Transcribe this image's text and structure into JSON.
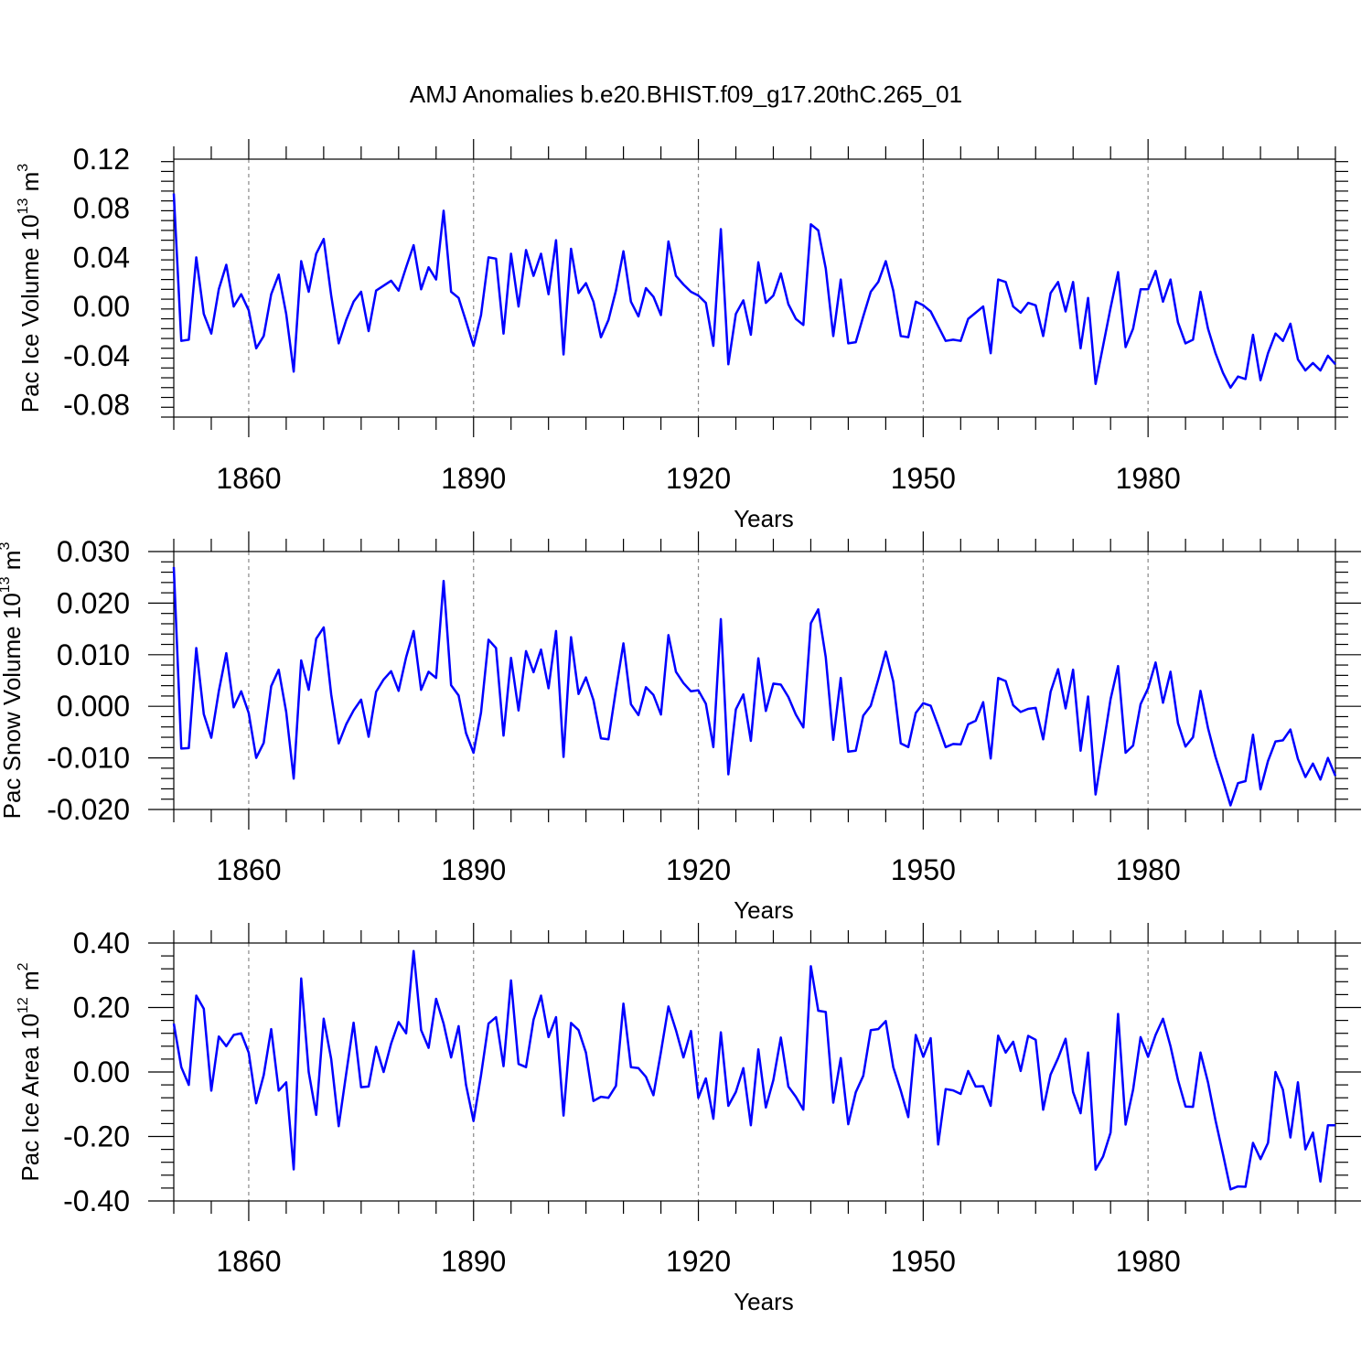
{
  "chart_data": {
    "title": "AMJ Anomalies b.e20.BHIST.f09_g17.20thC.265_01",
    "type": "line",
    "color": "#0000ff",
    "panels": [
      {
        "id": "ice-volume",
        "ylabel": {
          "main": "Pac Ice Volume 10",
          "exp": "13",
          "unit": " m",
          "unit_exp": "3"
        },
        "xlabel": "Years",
        "ylim": [
          -0.09,
          0.12
        ],
        "yticks": [
          -0.08,
          -0.04,
          0.0,
          0.04,
          0.08,
          0.12
        ],
        "ytick_labels": [
          "-0.08",
          "-0.04",
          "0.00",
          "0.04",
          "0.08",
          "0.12"
        ],
        "ydecimals": 2,
        "xlim": [
          1850,
          2005
        ],
        "xticks": [
          1860,
          1890,
          1920,
          1950,
          1980
        ],
        "x_start": 1850,
        "values": [
          0.092,
          -0.028,
          -0.027,
          0.04,
          -0.006,
          -0.022,
          0.014,
          0.034,
          0.0,
          0.01,
          -0.003,
          -0.034,
          -0.024,
          0.01,
          0.026,
          -0.006,
          -0.053,
          0.037,
          0.012,
          0.043,
          0.055,
          0.009,
          -0.03,
          -0.011,
          0.004,
          0.012,
          -0.02,
          0.013,
          0.017,
          0.021,
          0.013,
          0.032,
          0.05,
          0.014,
          0.032,
          0.022,
          0.078,
          0.012,
          0.007,
          -0.012,
          -0.032,
          -0.007,
          0.04,
          0.039,
          -0.022,
          0.043,
          0.0,
          0.046,
          0.025,
          0.043,
          0.01,
          0.054,
          -0.039,
          0.047,
          0.011,
          0.019,
          0.004,
          -0.025,
          -0.011,
          0.013,
          0.045,
          0.004,
          -0.008,
          0.015,
          0.008,
          -0.007,
          0.053,
          0.025,
          0.018,
          0.012,
          0.009,
          0.003,
          -0.032,
          0.063,
          -0.047,
          -0.006,
          0.005,
          -0.023,
          0.036,
          0.003,
          0.009,
          0.027,
          0.002,
          -0.01,
          -0.015,
          0.067,
          0.062,
          0.031,
          -0.024,
          0.022,
          -0.03,
          -0.029,
          -0.008,
          0.012,
          0.02,
          0.037,
          0.013,
          -0.024,
          -0.025,
          0.004,
          0.001,
          -0.004,
          -0.016,
          -0.028,
          -0.027,
          -0.028,
          -0.01,
          -0.005,
          0.0,
          -0.038,
          0.022,
          0.02,
          0.0,
          -0.005,
          0.003,
          0.001,
          -0.024,
          0.011,
          0.02,
          -0.004,
          0.02,
          -0.034,
          0.007,
          -0.063,
          -0.032,
          -0.001,
          0.028,
          -0.033,
          -0.018,
          0.014,
          0.014,
          0.029,
          0.004,
          0.022,
          -0.013,
          -0.03,
          -0.027,
          0.012,
          -0.018,
          -0.038,
          -0.054,
          -0.066,
          -0.057,
          -0.059,
          -0.023,
          -0.06,
          -0.038,
          -0.022,
          -0.028,
          -0.014,
          -0.043,
          -0.052,
          -0.046,
          -0.052,
          -0.04,
          -0.047
        ]
      },
      {
        "id": "snow-volume",
        "ylabel": {
          "main": "Pac Snow Volume 10",
          "exp": "13",
          "unit": " m",
          "unit_exp": "3"
        },
        "xlabel": "Years",
        "ylim": [
          -0.02,
          0.03
        ],
        "yticks": [
          -0.02,
          -0.01,
          0.0,
          0.01,
          0.02,
          0.03
        ],
        "ytick_labels": [
          "-0.020",
          "-0.010",
          "0.000",
          "0.010",
          "0.020",
          "0.030"
        ],
        "ydecimals": 3,
        "xlim": [
          1850,
          2005
        ],
        "xticks": [
          1860,
          1890,
          1920,
          1950,
          1980
        ],
        "x_start": 1850,
        "values": [
          0.027,
          -0.0082,
          -0.0081,
          0.0113,
          -0.0015,
          -0.0061,
          0.0029,
          0.0103,
          -0.0002,
          0.0029,
          -0.0013,
          -0.01,
          -0.0071,
          0.0039,
          0.0071,
          -0.0011,
          -0.014,
          0.0089,
          0.0032,
          0.0131,
          0.0153,
          0.0023,
          -0.0072,
          -0.0035,
          -0.0008,
          0.0013,
          -0.0059,
          0.0028,
          0.0052,
          0.0068,
          0.003,
          0.0095,
          0.0146,
          0.0032,
          0.0067,
          0.0055,
          0.0243,
          0.0041,
          0.0021,
          -0.0052,
          -0.009,
          -0.0012,
          0.0129,
          0.0113,
          -0.0057,
          0.0094,
          -0.0008,
          0.0107,
          0.0066,
          0.011,
          0.0035,
          0.0146,
          -0.0098,
          0.0134,
          0.0024,
          0.0056,
          0.0012,
          -0.0062,
          -0.0064,
          0.0032,
          0.0122,
          0.0004,
          -0.0017,
          0.0037,
          0.0022,
          -0.0016,
          0.0138,
          0.0067,
          0.0045,
          0.0029,
          0.0031,
          0.0005,
          -0.0079,
          0.0169,
          -0.0132,
          -0.0006,
          0.0023,
          -0.0067,
          0.0093,
          -0.0009,
          0.0044,
          0.0042,
          0.0018,
          -0.0016,
          -0.0041,
          0.0161,
          0.0188,
          0.0095,
          -0.0065,
          0.0055,
          -0.0088,
          -0.0086,
          -0.0018,
          0.0001,
          0.0052,
          0.0106,
          0.0048,
          -0.0072,
          -0.0079,
          -0.0013,
          0.0006,
          0.0001,
          -0.0038,
          -0.0079,
          -0.0073,
          -0.0074,
          -0.0035,
          -0.0028,
          0.0008,
          -0.0101,
          0.0055,
          0.0049,
          0.0002,
          -0.0011,
          -0.0005,
          -0.0003,
          -0.0064,
          0.0028,
          0.0072,
          -0.0004,
          0.0071,
          -0.0086,
          0.0019,
          -0.0171,
          -0.0079,
          0.0014,
          0.0078,
          -0.009,
          -0.0076,
          0.0004,
          0.0035,
          0.0085,
          0.0007,
          0.0067,
          -0.0033,
          -0.0078,
          -0.006,
          0.003,
          -0.0042,
          -0.0098,
          -0.0144,
          -0.0192,
          -0.0149,
          -0.0145,
          -0.0055,
          -0.0161,
          -0.0106,
          -0.0068,
          -0.0066,
          -0.0045,
          -0.0102,
          -0.0137,
          -0.0111,
          -0.0142,
          -0.01,
          -0.0135
        ]
      },
      {
        "id": "ice-area",
        "ylabel": {
          "main": "Pac Ice Area 10",
          "exp": "12",
          "unit": " m",
          "unit_exp": "2"
        },
        "xlabel": "Years",
        "ylim": [
          -0.4,
          0.4
        ],
        "yticks": [
          -0.4,
          -0.2,
          0.0,
          0.2,
          0.4
        ],
        "ytick_labels": [
          "-0.40",
          "-0.20",
          "0.00",
          "0.20",
          "0.40"
        ],
        "ydecimals": 2,
        "xlim": [
          1850,
          2005
        ],
        "xticks": [
          1860,
          1890,
          1920,
          1950,
          1980
        ],
        "x_start": 1850,
        "values": [
          0.15,
          0.015,
          -0.04,
          0.237,
          0.196,
          -0.058,
          0.11,
          0.08,
          0.115,
          0.12,
          0.06,
          -0.097,
          -0.01,
          0.133,
          -0.058,
          -0.032,
          -0.302,
          0.29,
          0.0,
          -0.133,
          0.165,
          0.04,
          -0.168,
          -0.005,
          0.153,
          -0.047,
          -0.045,
          0.078,
          0.0,
          0.088,
          0.155,
          0.12,
          0.375,
          0.13,
          0.075,
          0.227,
          0.15,
          0.045,
          0.142,
          -0.04,
          -0.152,
          -0.01,
          0.15,
          0.17,
          0.018,
          0.284,
          0.025,
          0.015,
          0.162,
          0.237,
          0.108,
          0.17,
          -0.135,
          0.152,
          0.13,
          0.06,
          -0.09,
          -0.077,
          -0.08,
          -0.043,
          0.212,
          0.015,
          0.012,
          -0.015,
          -0.072,
          0.062,
          0.203,
          0.13,
          0.045,
          0.127,
          -0.08,
          -0.02,
          -0.145,
          0.123,
          -0.105,
          -0.062,
          0.012,
          -0.165,
          0.07,
          -0.11,
          -0.025,
          0.107,
          -0.045,
          -0.077,
          -0.117,
          0.328,
          0.19,
          0.186,
          -0.095,
          0.043,
          -0.162,
          -0.063,
          -0.012,
          0.13,
          0.133,
          0.158,
          0.015,
          -0.058,
          -0.14,
          0.115,
          0.047,
          0.105,
          -0.225,
          -0.053,
          -0.057,
          -0.068,
          0.003,
          -0.045,
          -0.044,
          -0.105,
          0.113,
          0.06,
          0.094,
          0.003,
          0.112,
          0.1,
          -0.117,
          -0.008,
          0.043,
          0.103,
          -0.062,
          -0.128,
          0.06,
          -0.303,
          -0.262,
          -0.188,
          0.18,
          -0.163,
          -0.055,
          0.108,
          0.047,
          0.115,
          0.165,
          0.08,
          -0.025,
          -0.107,
          -0.108,
          0.06,
          -0.032,
          -0.15,
          -0.255,
          -0.364,
          -0.355,
          -0.356,
          -0.22,
          -0.27,
          -0.22,
          0.0,
          -0.055,
          -0.203,
          -0.032,
          -0.24,
          -0.188,
          -0.34,
          -0.165,
          -0.165
        ]
      }
    ]
  }
}
